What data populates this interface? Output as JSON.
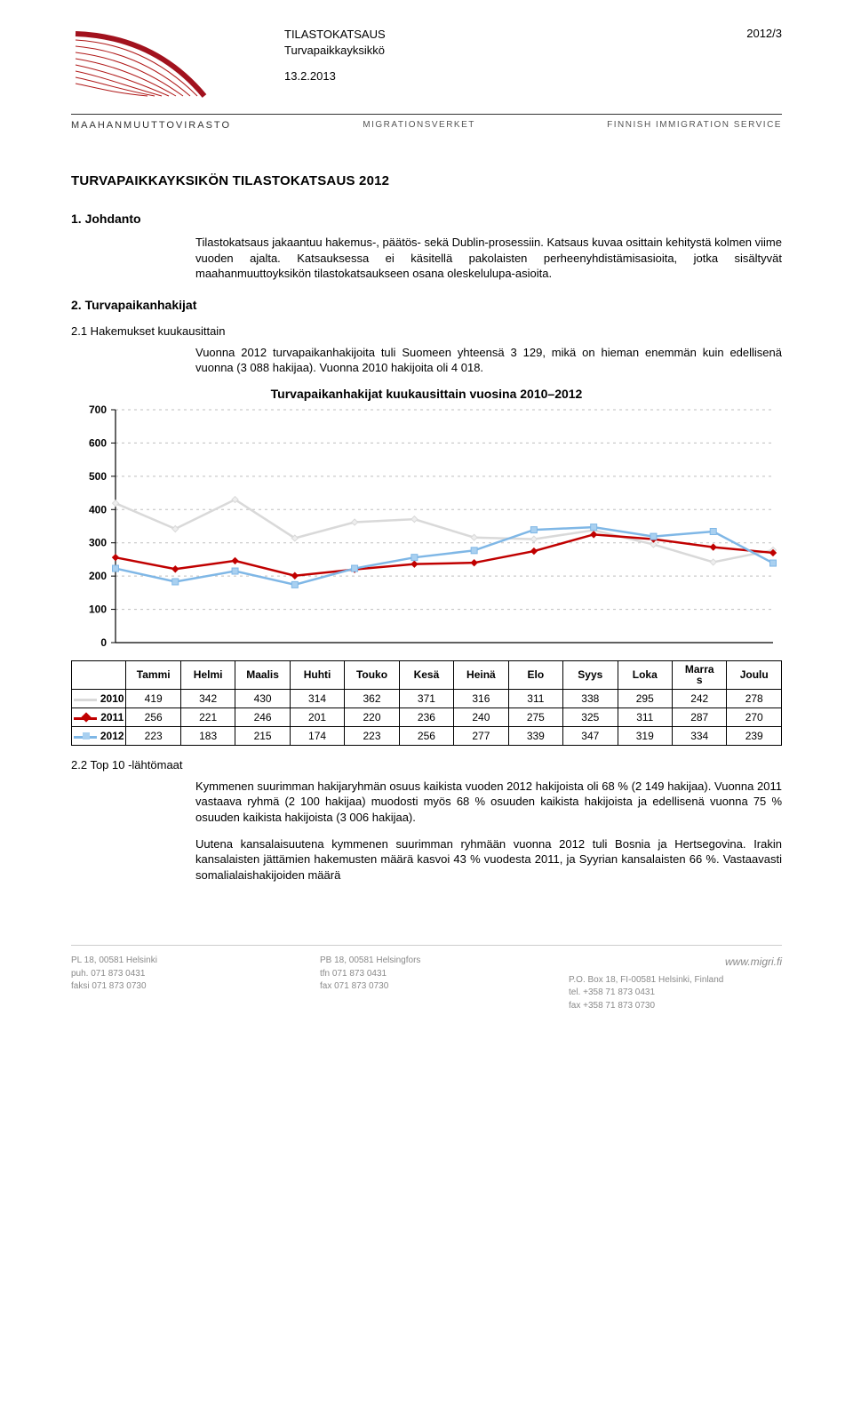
{
  "header": {
    "title_line1": "TILASTOKATSAUS",
    "title_line2": "Turvapaikkayksikkö",
    "issue": "2012/3",
    "date": "13.2.2013",
    "agency_fi": "MAAHANMUUTTOVIRASTO",
    "agency_sv": "MIGRATIONSVERKET",
    "agency_en": "FINNISH IMMIGRATION SERVICE"
  },
  "doc": {
    "title": "TURVAPAIKKAYKSIKÖN TILASTOKATSAUS 2012",
    "sec1_title": "1. Johdanto",
    "sec1_p1": "Tilastokatsaus jakaantuu hakemus-, päätös- sekä Dublin-prosessiin. Katsaus kuvaa osittain kehitystä kolmen viime vuoden ajalta. Katsauksessa ei käsitellä pakolaisten perheenyhdistämisasioita, jotka sisältyvät maahanmuuttoyksikön tilastokatsaukseen osana oleskelulupa-asioita.",
    "sec2_title": "2. Turvapaikanhakijat",
    "sec21_title": "2.1 Hakemukset kuukausittain",
    "sec21_p1": "Vuonna 2012 turvapaikanhakijoita tuli Suomeen yhteensä 3 129, mikä on hieman enemmän kuin edellisenä vuonna (3 088 hakijaa). Vuonna 2010 hakijoita oli 4 018.",
    "sec22_title": "2.2 Top 10 -lähtömaat",
    "sec22_p1": "Kymmenen suurimman hakijaryhmän osuus kaikista vuoden 2012 hakijoista oli 68 % (2 149 hakijaa). Vuonna 2011 vastaava ryhmä (2 100 hakijaa) muodosti myös 68 % osuuden kaikista hakijoista ja edellisenä vuonna 75 % osuuden kaikista hakijoista (3 006 hakijaa).",
    "sec22_p2": "Uutena kansalaisuutena kymmenen suurimman ryhmään vuonna 2012 tuli Bosnia ja Hertsegovina. Irakin kansalaisten jättämien hakemusten määrä kasvoi 43 % vuodesta 2011, ja Syyrian kansalaisten 66 %. Vastaavasti somalialaishakijoiden määrä"
  },
  "chart": {
    "title": "Turvapaikanhakijat kuukausittain vuosina 2010–2012",
    "type": "line",
    "months": [
      "Tammi",
      "Helmi",
      "Maalis",
      "Huhti",
      "Touko",
      "Kesä",
      "Heinä",
      "Elo",
      "Syys",
      "Loka",
      "Marras",
      "Joulu"
    ],
    "months_header_break": [
      "Tammi",
      "Helmi",
      "Maalis",
      "Huhti",
      "Touko",
      "Kesä",
      "Heinä",
      "Elo",
      "Syys",
      "Loka",
      "Marra\ns",
      "Joulu"
    ],
    "ylim": [
      0,
      700
    ],
    "ytick_step": 100,
    "yticks": [
      0,
      100,
      200,
      300,
      400,
      500,
      600,
      700
    ],
    "grid_style": "dashed",
    "grid_color": "#bfbfbf",
    "background_color": "#ffffff",
    "axis_color": "#000000",
    "line_width": 2.5,
    "marker_size": 7,
    "series": [
      {
        "year": "2010",
        "color": "#d9d9d9",
        "marker_fill": "#eeeeee",
        "marker_shape": "diamond",
        "values": [
          419,
          342,
          430,
          314,
          362,
          371,
          316,
          311,
          338,
          295,
          242,
          278
        ]
      },
      {
        "year": "2011",
        "color": "#c00000",
        "marker_fill": "#c00000",
        "marker_shape": "diamond",
        "values": [
          256,
          221,
          246,
          201,
          220,
          236,
          240,
          275,
          325,
          311,
          287,
          270
        ]
      },
      {
        "year": "2012",
        "color": "#7fb7e6",
        "marker_fill": "#a9d0f0",
        "marker_shape": "square",
        "values": [
          223,
          183,
          215,
          174,
          223,
          256,
          277,
          339,
          347,
          319,
          334,
          239
        ]
      }
    ],
    "tick_fontsize": 12,
    "label_fontsize": 11
  },
  "footer": {
    "url": "www.migri.fi",
    "col1": [
      "PL 18, 00581 Helsinki",
      "puh. 071 873 0431",
      "faksi 071 873 0730"
    ],
    "col2": [
      "PB 18, 00581 Helsingfors",
      "tfn 071 873 0431",
      "fax 071 873 0730"
    ],
    "col3": [
      "P.O. Box 18, FI-00581 Helsinki, Finland",
      "tel. +358 71 873 0431",
      "fax +358 71 873 0730"
    ]
  }
}
